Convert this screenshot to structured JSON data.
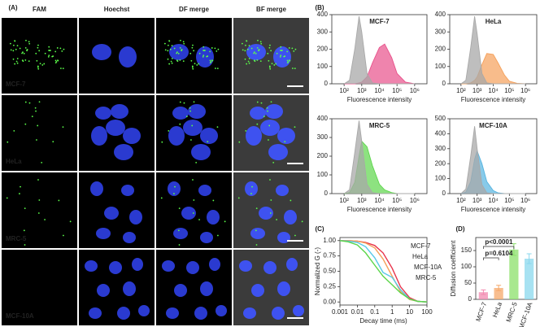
{
  "panel_labels": [
    "(A)",
    "(B)",
    "(C)",
    "(D)"
  ],
  "panel_a": {
    "columns": [
      "FAM",
      "Hoechst",
      "DF merge",
      "BF merge"
    ],
    "rows": [
      "MCF-7",
      "HeLa",
      "MRC-5",
      "MCF-10A"
    ]
  },
  "chart_data": [
    {
      "type": "area",
      "title": "MCF-7",
      "xlabel": "Fluorescence intensity",
      "xscale": "log",
      "xlim": [
        20,
        5000000
      ],
      "xticks": [
        {
          "value": 100,
          "label": "10²"
        },
        {
          "value": 1000,
          "label": "10³"
        },
        {
          "value": 10000,
          "label": "10⁴"
        },
        {
          "value": 100000,
          "label": "10⁵"
        },
        {
          "value": 1000000,
          "label": "10⁶"
        }
      ],
      "ylim": [
        0,
        400
      ],
      "yticks": [
        0,
        100,
        200,
        300,
        400
      ],
      "x": [
        100,
        200,
        400,
        700,
        1000,
        2000,
        4000,
        10000,
        20000,
        50000,
        100000,
        300000,
        1000000
      ],
      "series": [
        {
          "color": "#e8508a",
          "values": [
            0,
            0,
            0,
            5,
            10,
            40,
            120,
            210,
            230,
            150,
            60,
            10,
            0
          ]
        },
        {
          "color": "#a8a8a8",
          "values": [
            0,
            20,
            200,
            390,
            300,
            60,
            5,
            0,
            0,
            0,
            0,
            0,
            0
          ]
        }
      ]
    },
    {
      "type": "area",
      "title": "HeLa",
      "xlabel": "Fluorescence intensity",
      "xscale": "log",
      "xlim": [
        20,
        5000000
      ],
      "xticks": [
        {
          "value": 100,
          "label": "10²"
        },
        {
          "value": 1000,
          "label": "10³"
        },
        {
          "value": 10000,
          "label": "10⁴"
        },
        {
          "value": 100000,
          "label": "10⁵"
        },
        {
          "value": 1000000,
          "label": "10⁶"
        }
      ],
      "ylim": [
        0,
        400
      ],
      "yticks": [
        0,
        100,
        200,
        300,
        400
      ],
      "x": [
        100,
        200,
        400,
        700,
        1000,
        2000,
        4000,
        10000,
        20000,
        50000,
        100000,
        300000,
        1000000
      ],
      "series": [
        {
          "color": "#f5a05a",
          "values": [
            0,
            0,
            5,
            20,
            40,
            110,
            175,
            170,
            120,
            50,
            15,
            3,
            0
          ]
        },
        {
          "color": "#a8a8a8",
          "values": [
            0,
            20,
            210,
            390,
            290,
            60,
            5,
            0,
            0,
            0,
            0,
            0,
            0
          ]
        }
      ]
    },
    {
      "type": "area",
      "title": "MRC-5",
      "xlabel": "Fluorescence intensity",
      "xscale": "log",
      "xlim": [
        20,
        5000000
      ],
      "xticks": [
        {
          "value": 100,
          "label": "10²"
        },
        {
          "value": 1000,
          "label": "10³"
        },
        {
          "value": 10000,
          "label": "10⁴"
        },
        {
          "value": 100000,
          "label": "10⁵"
        },
        {
          "value": 1000000,
          "label": "10⁶"
        }
      ],
      "ylim": [
        0,
        400
      ],
      "yticks": [
        0,
        100,
        200,
        300,
        400
      ],
      "x": [
        100,
        200,
        400,
        700,
        1000,
        2000,
        4000,
        10000,
        20000,
        50000,
        100000,
        300000,
        1000000
      ],
      "series": [
        {
          "color": "#5cd64a",
          "values": [
            0,
            5,
            60,
            200,
            280,
            250,
            150,
            50,
            20,
            5,
            0,
            0,
            0
          ]
        },
        {
          "color": "#a8a8a8",
          "values": [
            0,
            20,
            220,
            390,
            280,
            50,
            5,
            0,
            0,
            0,
            0,
            0,
            0
          ]
        }
      ]
    },
    {
      "type": "area",
      "title": "MCF-10A",
      "xlabel": "Fluorescence intensity",
      "xscale": "log",
      "xlim": [
        20,
        5000000
      ],
      "xticks": [
        {
          "value": 100,
          "label": "10²"
        },
        {
          "value": 1000,
          "label": "10³"
        },
        {
          "value": 10000,
          "label": "10⁴"
        },
        {
          "value": 100000,
          "label": "10⁵"
        },
        {
          "value": 1000000,
          "label": "10⁶"
        }
      ],
      "ylim": [
        0,
        500
      ],
      "yticks": [
        0,
        100,
        200,
        300,
        400,
        500
      ],
      "x": [
        100,
        200,
        400,
        700,
        1000,
        2000,
        4000,
        10000,
        20000,
        50000,
        100000,
        300000,
        1000000
      ],
      "series": [
        {
          "color": "#56b4e0",
          "values": [
            0,
            10,
            80,
            230,
            285,
            200,
            80,
            20,
            5,
            0,
            0,
            0,
            0
          ]
        },
        {
          "color": "#a8a8a8",
          "values": [
            0,
            30,
            250,
            450,
            300,
            60,
            5,
            0,
            0,
            0,
            0,
            0,
            0
          ]
        }
      ]
    },
    {
      "type": "line",
      "xlabel": "Decay time (ms)",
      "ylabel": "Normalized G (-)",
      "xscale": "log",
      "xlim": [
        0.001,
        100
      ],
      "xticks": [
        0.001,
        0.01,
        0.1,
        1,
        10,
        100
      ],
      "ylim": [
        -0.05,
        1.05
      ],
      "yticks": [
        {
          "value": 0,
          "label": "0.00"
        },
        {
          "value": 0.25,
          "label": "0.25"
        },
        {
          "value": 0.5,
          "label": "0.50"
        },
        {
          "value": 0.75,
          "label": "0.75"
        },
        {
          "value": 1,
          "label": "1.00"
        }
      ],
      "x": [
        0.001,
        0.003,
        0.01,
        0.03,
        0.1,
        0.3,
        1,
        3,
        10,
        30,
        100
      ],
      "series": [
        {
          "name": "MCF-7",
          "color": "#e8344a",
          "values": [
            1,
            1,
            0.99,
            0.97,
            0.92,
            0.8,
            0.55,
            0.25,
            0.07,
            0.01,
            0
          ]
        },
        {
          "name": "HeLa",
          "color": "#f5a05a",
          "values": [
            1,
            1,
            0.99,
            0.96,
            0.88,
            0.7,
            0.42,
            0.17,
            0.04,
            0.01,
            0
          ]
        },
        {
          "name": "MCF-10A",
          "color": "#56c8e8",
          "values": [
            1,
            0.99,
            0.97,
            0.9,
            0.72,
            0.48,
            0.4,
            0.2,
            0.05,
            0.01,
            0
          ]
        },
        {
          "name": "MRC-5",
          "color": "#5cd64a",
          "values": [
            1,
            0.98,
            0.93,
            0.8,
            0.6,
            0.42,
            0.28,
            0.15,
            0.05,
            0.01,
            0
          ]
        }
      ]
    },
    {
      "type": "bar",
      "ylabel": "Diffusion coefficient",
      "categories": [
        "MCF-7",
        "HeLa",
        "MRC-5",
        "MCF-10A"
      ],
      "values": [
        22,
        35,
        153,
        125
      ],
      "errors": [
        7,
        8,
        18,
        15
      ],
      "colors": [
        "#f28ab0",
        "#f5a86a",
        "#8be06a",
        "#8ad8ee"
      ],
      "ylim": [
        0,
        190
      ],
      "yticks": [
        0,
        50,
        100,
        150
      ],
      "annotations": [
        "p<0.0001",
        "p=0.6104"
      ]
    }
  ]
}
